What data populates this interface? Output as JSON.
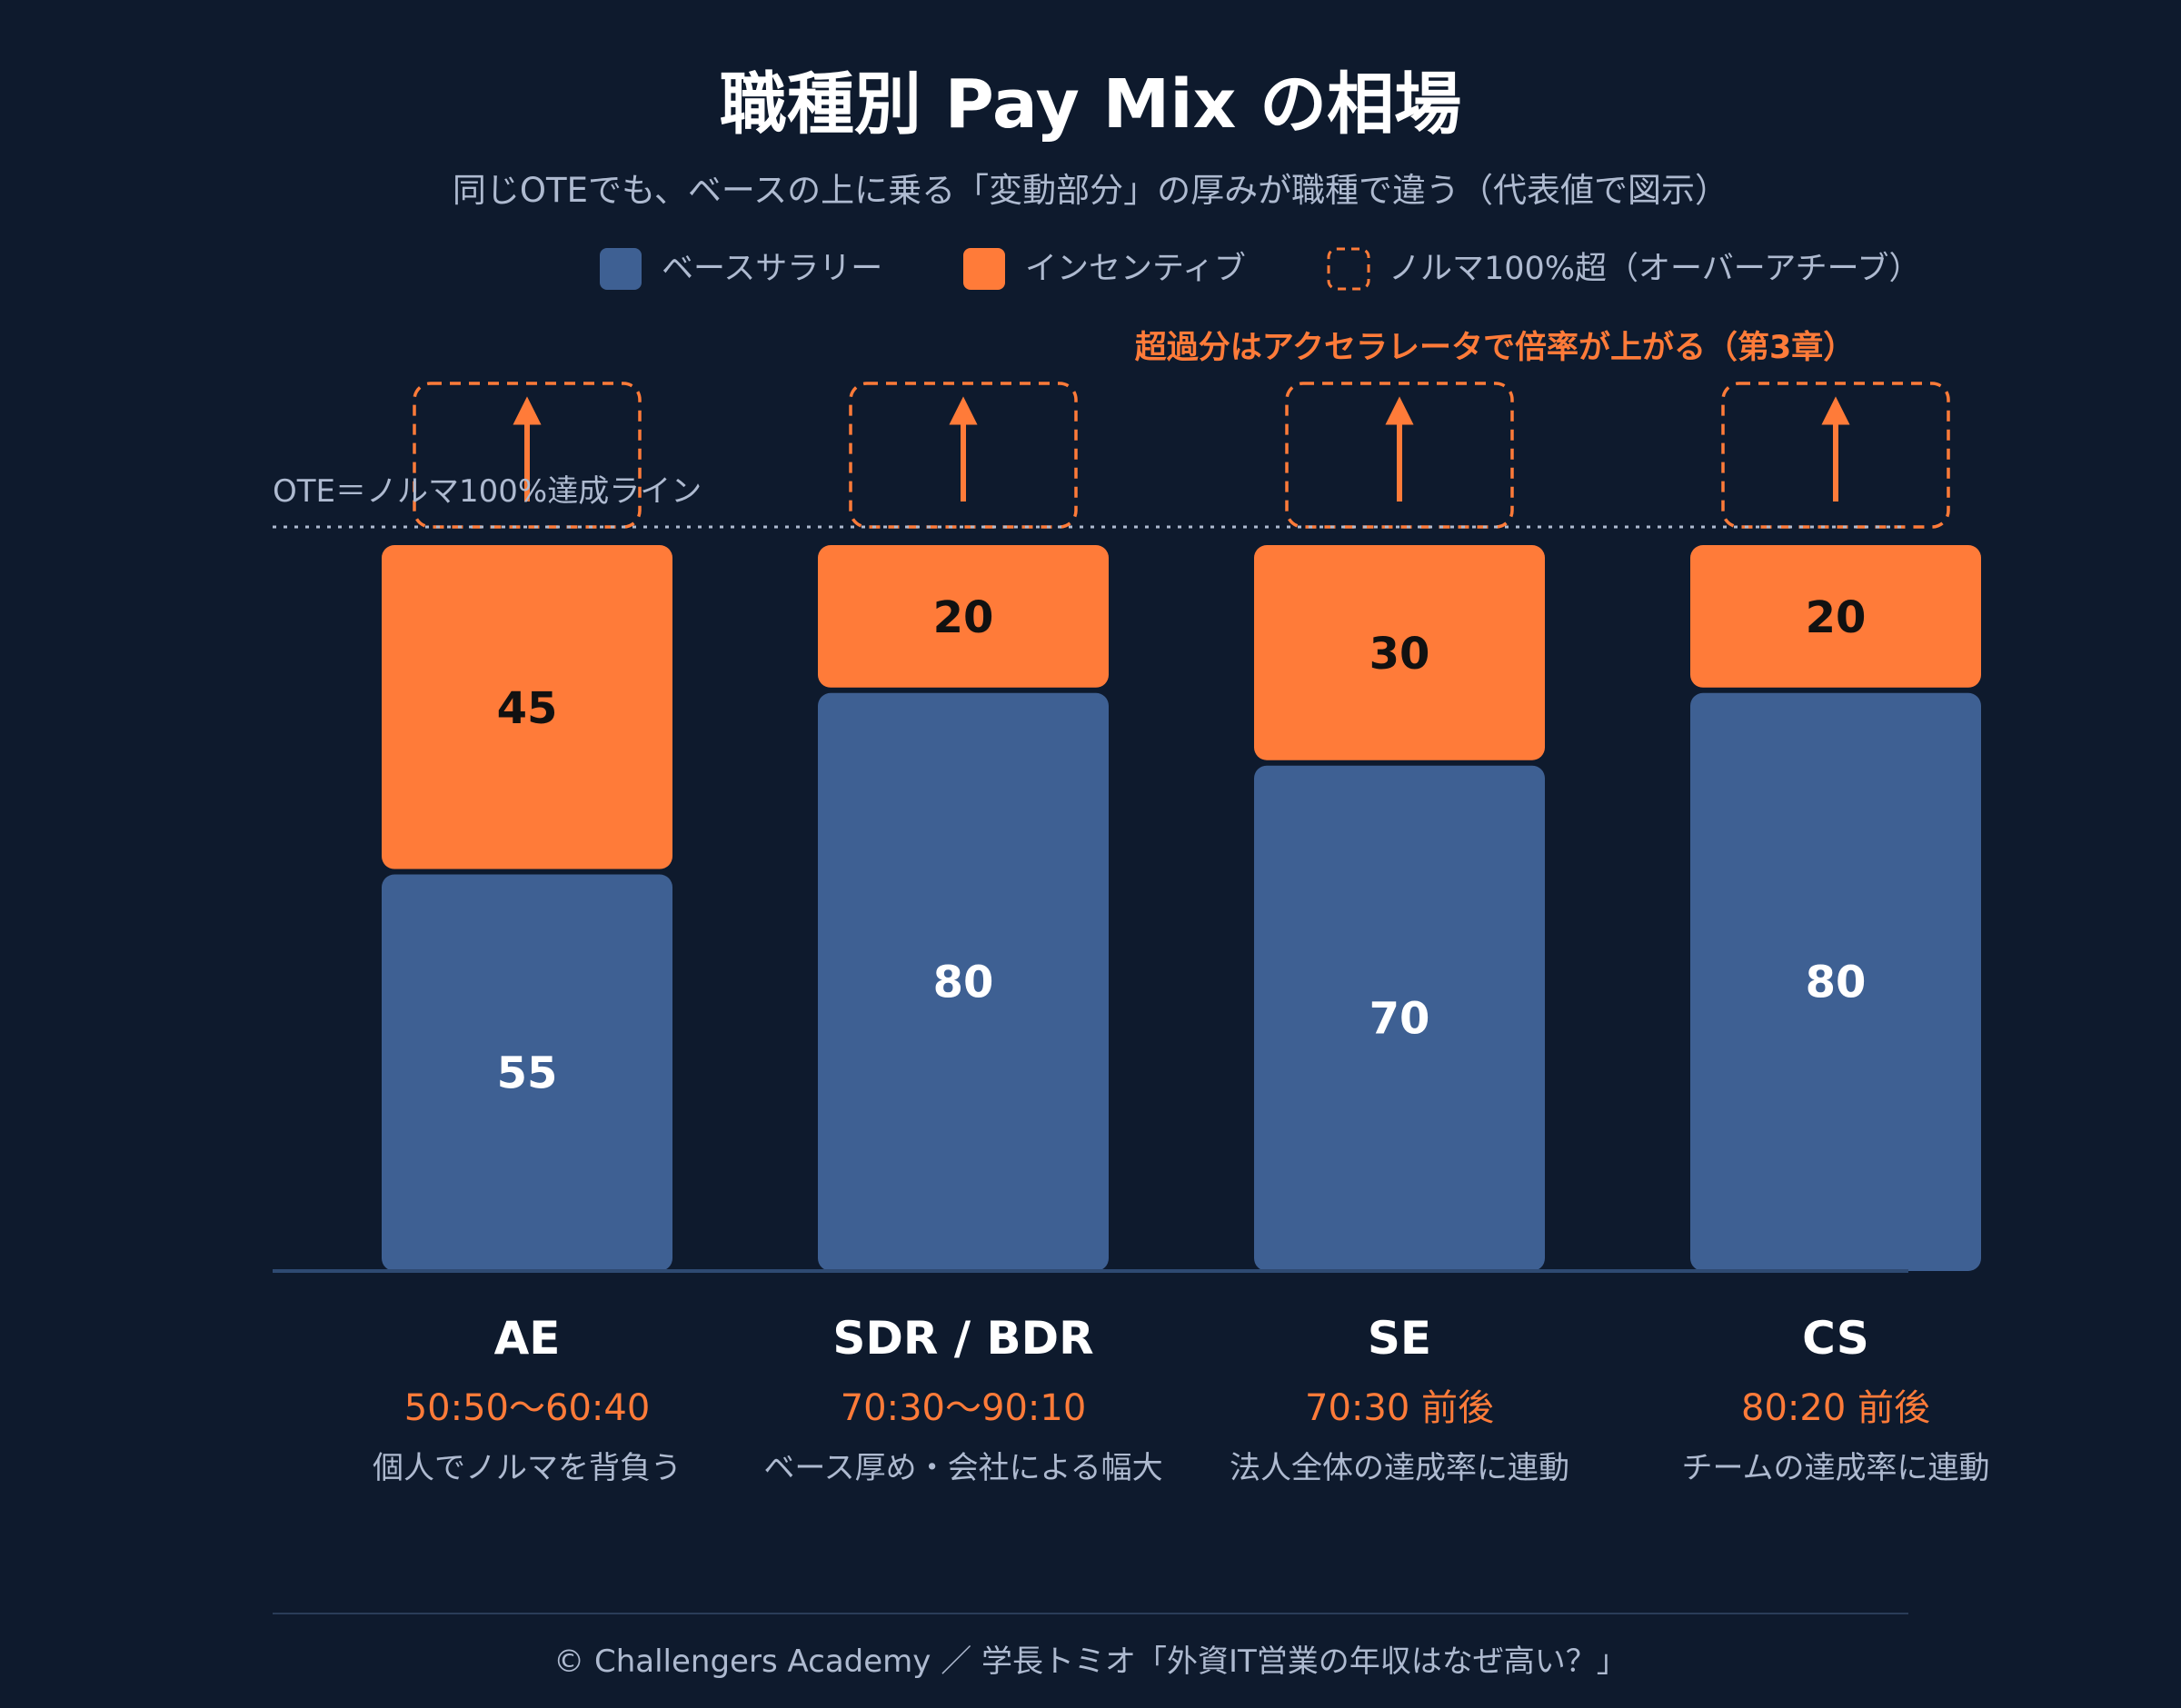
{
  "title": "職種別 Pay Mix の相場",
  "subtitle": "同じOTEでも、ベースの上に乗る「変動部分」の厚みが職種で違う（代表値で図示）",
  "legend": [
    {
      "label": "ベースサラリー",
      "kind": "solid",
      "color": "#3e6093"
    },
    {
      "label": "インセンティブ",
      "kind": "solid",
      "color": "#ff7b39"
    },
    {
      "label": "ノルマ100%超（オーバーアチーブ）",
      "kind": "dashed",
      "color": "#ff7b39"
    }
  ],
  "annotations": {
    "accelerator_note": "超過分はアクセラレータで倍率が上がる（第3章）",
    "ote_line_label": "OTE＝ノルマ100%達成ライン"
  },
  "footer": "© Challengers Academy ／ 学長トミオ「外資IT営業の年収はなぜ高い？」",
  "colors": {
    "background": "#0e1a2d",
    "base": "#3e6093",
    "incentive": "#ff7b39",
    "accent_text": "#ff7b39",
    "muted_text": "#aebad0",
    "white": "#ffffff",
    "dark_label": "#111111"
  },
  "chart_data": {
    "type": "bar",
    "stacked": true,
    "categories": [
      "AE",
      "SDR / BDR",
      "SE",
      "CS"
    ],
    "series": [
      {
        "name": "ベースサラリー",
        "values": [
          55,
          80,
          70,
          80
        ]
      },
      {
        "name": "インセンティブ",
        "values": [
          45,
          20,
          30,
          20
        ]
      }
    ],
    "ylim": [
      0,
      100
    ],
    "ote_line_value": 100,
    "grid": false,
    "legend_position": "top-right",
    "category_details": [
      {
        "ratio": "50:50〜60:40",
        "note": "個人でノルマを背負う"
      },
      {
        "ratio": "70:30〜90:10",
        "note": "ベース厚め・会社による幅大"
      },
      {
        "ratio": "70:30 前後",
        "note": "法人全体の達成率に連動"
      },
      {
        "ratio": "80:20 前後",
        "note": "チームの達成率に連動"
      }
    ]
  }
}
